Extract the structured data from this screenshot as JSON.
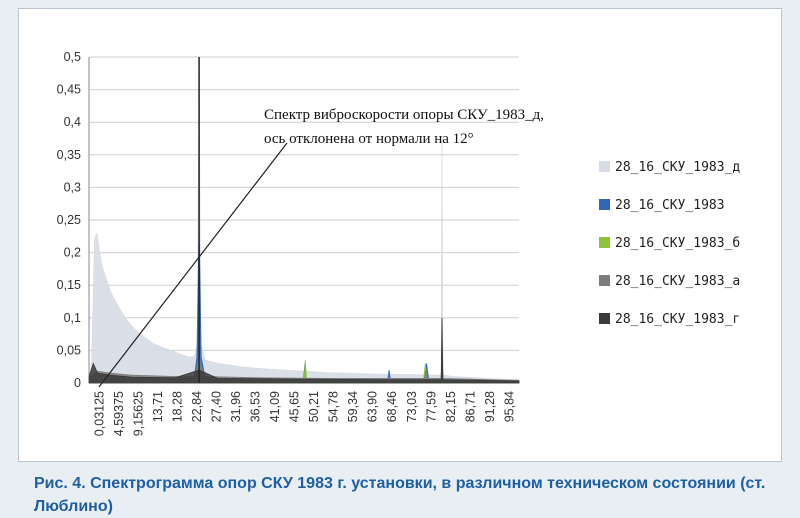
{
  "chart_data": {
    "type": "area",
    "ylim": [
      0,
      0.5
    ],
    "yticks": [
      "0",
      "0,05",
      "0,1",
      "0,15",
      "0,2",
      "0,25",
      "0,3",
      "0,35",
      "0,4",
      "0,45",
      "0,5"
    ],
    "xticks": [
      "0,03125",
      "4,59375",
      "9,15625",
      "13,71",
      "18,28",
      "22,84",
      "27,40",
      "31,96",
      "36,53",
      "41,09",
      "45,65",
      "50,21",
      "54,78",
      "59,34",
      "63,90",
      "68,46",
      "73,03",
      "77,59",
      "82,15",
      "86,71",
      "91,28",
      "95,84"
    ],
    "xlim": [
      0,
      100
    ],
    "grid": true,
    "legend_position": "right",
    "annotation": {
      "line1": "Спектр виброскорости опоры СКУ_1983_д,",
      "line2": "ось отклонена от нормали на 12°"
    },
    "series": [
      {
        "name": "28_16_СКУ_1983_д",
        "color": "#d7dbe4",
        "points": [
          [
            0.03,
            0.005
          ],
          [
            0.6,
            0.03
          ],
          [
            1.3,
            0.22
          ],
          [
            1.8,
            0.23
          ],
          [
            3,
            0.18
          ],
          [
            5,
            0.14
          ],
          [
            7,
            0.115
          ],
          [
            9,
            0.095
          ],
          [
            11,
            0.08
          ],
          [
            13,
            0.07
          ],
          [
            15,
            0.06
          ],
          [
            17,
            0.055
          ],
          [
            19,
            0.05
          ],
          [
            21,
            0.045
          ],
          [
            23,
            0.04
          ],
          [
            24.5,
            0.04
          ],
          [
            25.2,
            0.06
          ],
          [
            25.6,
            0.5
          ],
          [
            26.0,
            0.06
          ],
          [
            27,
            0.035
          ],
          [
            30,
            0.03
          ],
          [
            35,
            0.025
          ],
          [
            40,
            0.022
          ],
          [
            45,
            0.02
          ],
          [
            50,
            0.018
          ],
          [
            55,
            0.016
          ],
          [
            60,
            0.015
          ],
          [
            65,
            0.014
          ],
          [
            70,
            0.013
          ],
          [
            75,
            0.013
          ],
          [
            80,
            0.012
          ],
          [
            81.9,
            0.012
          ],
          [
            82.1,
            0.38
          ],
          [
            82.3,
            0.012
          ],
          [
            85,
            0.01
          ],
          [
            90,
            0.008
          ],
          [
            96,
            0.006
          ],
          [
            100,
            0.005
          ]
        ]
      },
      {
        "name": "28_16_СКУ_1983",
        "color": "#2f66b8",
        "points": [
          [
            0.03,
            0.004
          ],
          [
            5,
            0.006
          ],
          [
            10,
            0.006
          ],
          [
            20,
            0.007
          ],
          [
            24.5,
            0.008
          ],
          [
            25.1,
            0.04
          ],
          [
            25.6,
            0.24
          ],
          [
            26.1,
            0.04
          ],
          [
            27,
            0.008
          ],
          [
            35,
            0.006
          ],
          [
            45,
            0.006
          ],
          [
            49.9,
            0.006
          ],
          [
            50.2,
            0.03
          ],
          [
            50.5,
            0.006
          ],
          [
            60,
            0.005
          ],
          [
            69.5,
            0.005
          ],
          [
            69.8,
            0.02
          ],
          [
            70.1,
            0.005
          ],
          [
            78,
            0.005
          ],
          [
            78.5,
            0.03
          ],
          [
            79,
            0.005
          ],
          [
            81.9,
            0.005
          ],
          [
            82.1,
            0.05
          ],
          [
            82.3,
            0.005
          ],
          [
            90,
            0.004
          ],
          [
            100,
            0.003
          ]
        ]
      },
      {
        "name": "28_16_СКУ_1983_б",
        "color": "#8cc33b",
        "points": [
          [
            0.03,
            0.003
          ],
          [
            10,
            0.004
          ],
          [
            20,
            0.005
          ],
          [
            24.5,
            0.006
          ],
          [
            25.2,
            0.02
          ],
          [
            25.6,
            0.03
          ],
          [
            26.0,
            0.02
          ],
          [
            27,
            0.006
          ],
          [
            40,
            0.004
          ],
          [
            50,
            0.004
          ],
          [
            50.3,
            0.035
          ],
          [
            50.6,
            0.004
          ],
          [
            60,
            0.003
          ],
          [
            75,
            0.003
          ],
          [
            77.8,
            0.004
          ],
          [
            78.2,
            0.03
          ],
          [
            78.6,
            0.004
          ],
          [
            90,
            0.003
          ],
          [
            100,
            0.002
          ]
        ]
      },
      {
        "name": "28_16_СКУ_1983_а",
        "color": "#7d7d7d",
        "points": [
          [
            0.03,
            0.008
          ],
          [
            2,
            0.018
          ],
          [
            5,
            0.015
          ],
          [
            10,
            0.012
          ],
          [
            20,
            0.01
          ],
          [
            24.5,
            0.01
          ],
          [
            25.2,
            0.025
          ],
          [
            25.6,
            0.04
          ],
          [
            26.0,
            0.025
          ],
          [
            27,
            0.01
          ],
          [
            40,
            0.008
          ],
          [
            55,
            0.007
          ],
          [
            70,
            0.007
          ],
          [
            78,
            0.007
          ],
          [
            78.4,
            0.02
          ],
          [
            78.8,
            0.007
          ],
          [
            81.9,
            0.007
          ],
          [
            82.1,
            0.06
          ],
          [
            82.3,
            0.007
          ],
          [
            100,
            0.004
          ]
        ]
      },
      {
        "name": "28_16_СКУ_1983_г",
        "color": "#3a3a3a",
        "points": [
          [
            0.03,
            0.01
          ],
          [
            1,
            0.03
          ],
          [
            2,
            0.015
          ],
          [
            5,
            0.012
          ],
          [
            10,
            0.009
          ],
          [
            20,
            0.008
          ],
          [
            25.6,
            0.02
          ],
          [
            30,
            0.007
          ],
          [
            50,
            0.006
          ],
          [
            70,
            0.005
          ],
          [
            81.9,
            0.005
          ],
          [
            82.1,
            0.1
          ],
          [
            82.3,
            0.005
          ],
          [
            100,
            0.003
          ]
        ]
      }
    ]
  },
  "caption": "Рис. 4. Спектрограмма опор СКУ 1983 г. установки, в различном техническом состоянии (ст. Люблино)"
}
